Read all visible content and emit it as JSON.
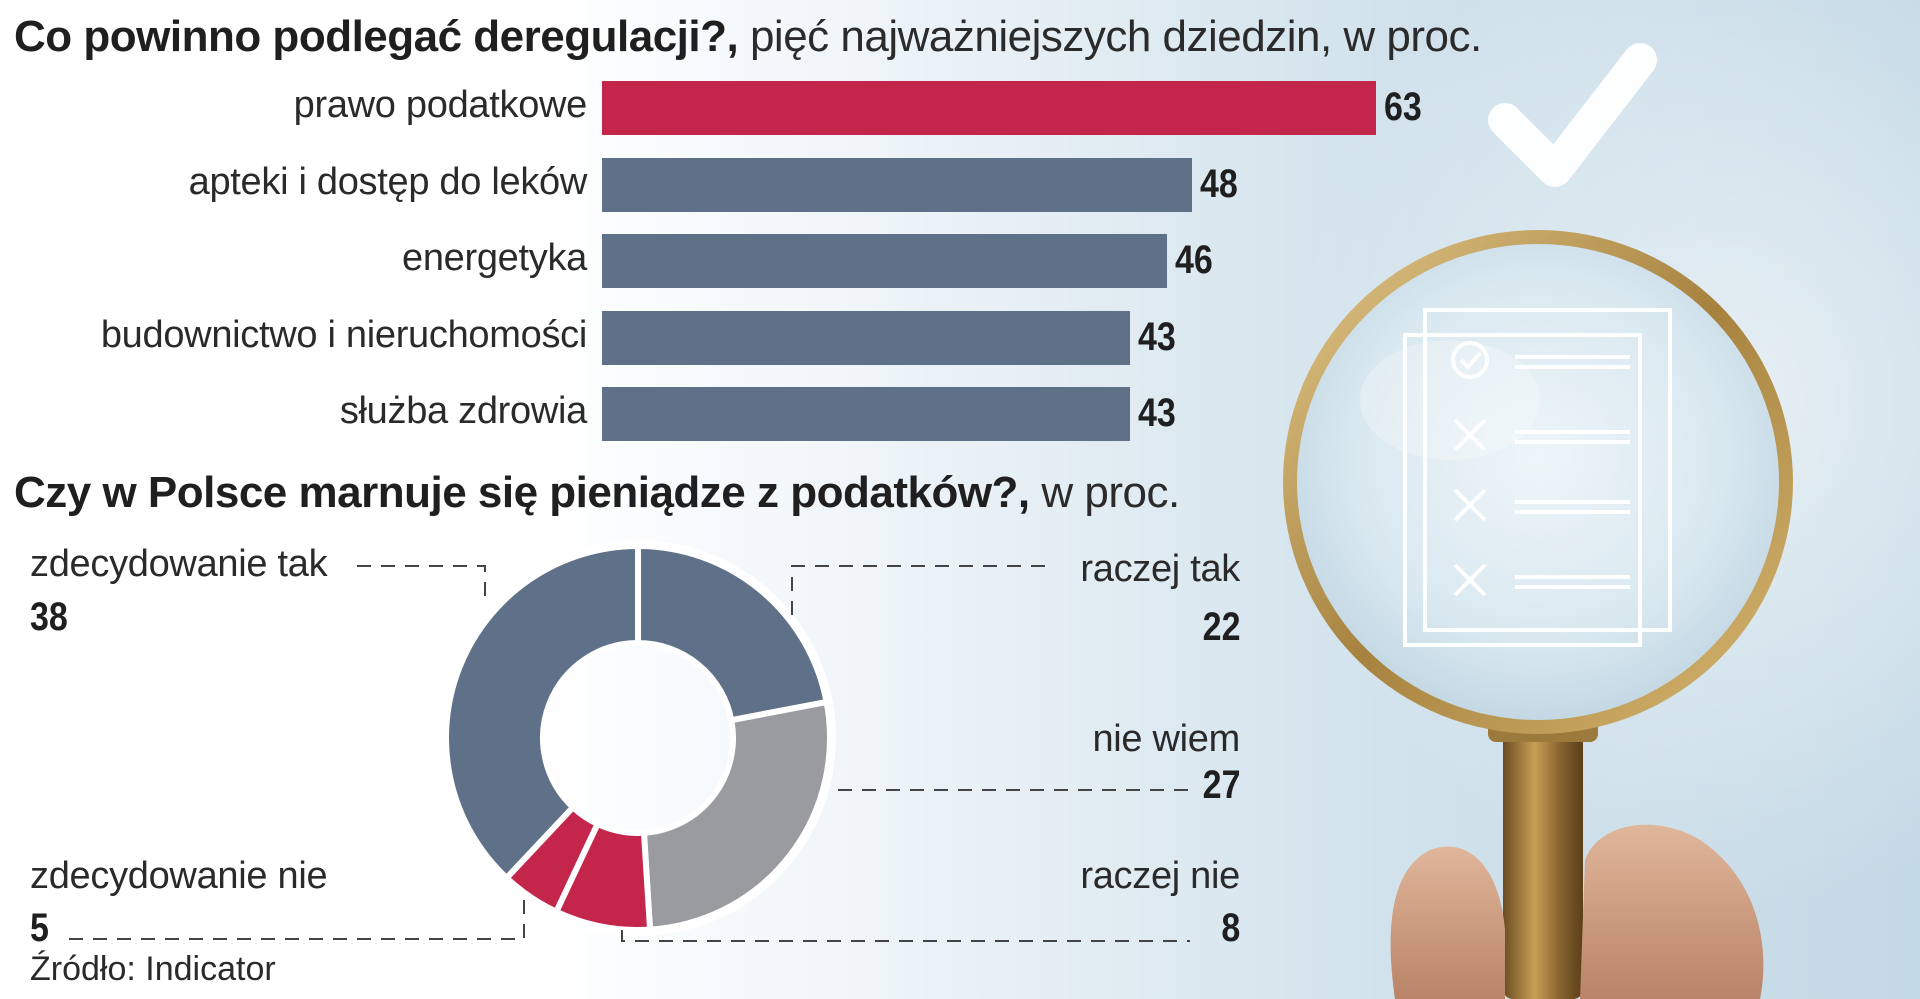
{
  "bar_chart": {
    "title_bold": "Co powinno podlegać deregulacji?,",
    "title_rest": " pięć najważniejszych dziedzin, w proc."
  },
  "donut_chart": {
    "title_bold": "Czy w Polsce marnuje się pieniądze z podatków?,",
    "title_rest": " w proc."
  },
  "source": "Źródło: Indicator",
  "colors": {
    "accent": "#c4264b",
    "bar": "#5f7189",
    "slate": "#5f7189",
    "gray": "#9a9b9f",
    "red": "#c4264b"
  },
  "illustration": {
    "icons": [
      "magnifier-icon",
      "checkmark-icon",
      "checklist-icon",
      "check-circle-icon",
      "x-mark-icon",
      "hand-icon"
    ]
  },
  "chart_data": [
    {
      "type": "bar",
      "orientation": "horizontal",
      "title": "Co powinno podlegać deregulacji?, pięć najważniejszych dziedzin, w proc.",
      "categories": [
        "prawo podatkowe",
        "apteki i dostęp do leków",
        "energetyka",
        "budownictwo i nieruchomości",
        "służba zdrowia"
      ],
      "values": [
        63,
        48,
        46,
        43,
        43
      ],
      "highlight_index": 0,
      "xlim": [
        0,
        63
      ],
      "grid": false,
      "legend": false
    },
    {
      "type": "pie",
      "variant": "donut",
      "title": "Czy w Polsce marnuje się pieniądze z podatków?, w proc.",
      "slices": [
        {
          "label": "raczej tak",
          "value": 22,
          "color": "#5f7189"
        },
        {
          "label": "nie wiem",
          "value": 27,
          "color": "#9a9b9f"
        },
        {
          "label": "raczej nie",
          "value": 8,
          "color": "#c4264b"
        },
        {
          "label": "zdecydowanie nie",
          "value": 5,
          "color": "#c4264b"
        },
        {
          "label": "zdecydowanie tak",
          "value": 38,
          "color": "#5f7189"
        }
      ]
    }
  ]
}
